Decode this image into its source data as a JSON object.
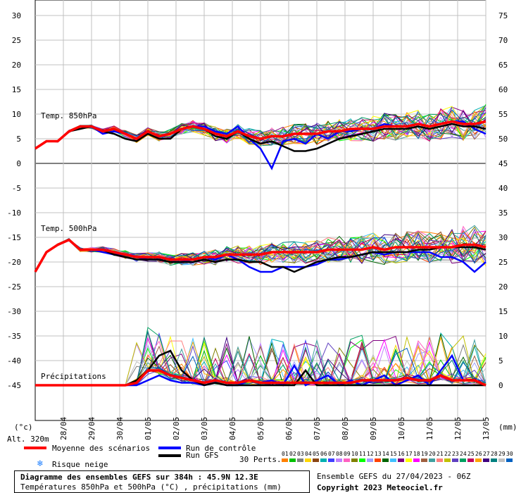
{
  "chart_data": {
    "type": "line",
    "title": "Diagramme des ensembles GEFS sur 384h : 45.9N 12.3E",
    "subtitle": "Températures 850hPa et 500hPa (°C) , précipitations (mm)",
    "x_tick_labels": [
      "28/04",
      "29/04",
      "30/04",
      "01/05",
      "02/05",
      "03/05",
      "04/05",
      "05/05",
      "06/05",
      "07/05",
      "08/05",
      "09/05",
      "10/05",
      "11/05",
      "12/05",
      "13/05"
    ],
    "left_axis_ticks": [
      "30",
      "25",
      "20",
      "15",
      "10",
      "5",
      "0",
      "-5",
      "-10",
      "-15",
      "-20",
      "-25",
      "-30",
      "-35",
      "-40",
      "-45"
    ],
    "right_axis_ticks": [
      "75",
      "70",
      "65",
      "60",
      "55",
      "50",
      "45",
      "40",
      "35",
      "30",
      "25",
      "20",
      "15",
      "10",
      "5",
      "0"
    ],
    "left_unit": "(°c)",
    "right_unit": "(mm)",
    "panel_labels": [
      "Temp. 850hPa",
      "Temp. 500hPa",
      "Précipitations"
    ],
    "altitude_label": "Alt. 320m",
    "series": [
      {
        "name": "Moyenne des scénarios",
        "color": "#ff0000",
        "t850": [
          3,
          4.5,
          4.5,
          6.5,
          7.5,
          7.5,
          6.5,
          7,
          6,
          5,
          6.5,
          5.5,
          6,
          7,
          7.5,
          7,
          6,
          5.5,
          6.5,
          5.5,
          5,
          5.5,
          5.5,
          6,
          6,
          6,
          6.5,
          6.5,
          7,
          7,
          7,
          7.5,
          7.5,
          7.5,
          8,
          7.5,
          8,
          8.5,
          8,
          8,
          8.5
        ],
        "t500": [
          -22,
          -18,
          -16.5,
          -15.5,
          -17.5,
          -17.5,
          -17.5,
          -18,
          -18.5,
          -19,
          -19,
          -19,
          -19.5,
          -19.5,
          -19.5,
          -19,
          -19,
          -18.5,
          -18.5,
          -18.5,
          -18.5,
          -18,
          -18,
          -18,
          -18,
          -18,
          -17.5,
          -17.5,
          -17.5,
          -17.5,
          -17,
          -17.5,
          -17,
          -17,
          -17,
          -17,
          -17,
          -17,
          -16.5,
          -16.5,
          -17
        ],
        "precip_mm": [
          0,
          0,
          0,
          0,
          0,
          0,
          0,
          0,
          0,
          0.5,
          3,
          3,
          2,
          1.5,
          1,
          0.5,
          1,
          0.5,
          0.5,
          1,
          0.5,
          0.5,
          0.5,
          0.5,
          0.5,
          0.5,
          0.5,
          0.5,
          0.5,
          1,
          1,
          1,
          1,
          1.5,
          1,
          1,
          2,
          1,
          1,
          1,
          0
        ]
      },
      {
        "name": "Run de contrôle",
        "color": "#0000ff",
        "t850": [
          3,
          4.5,
          4.5,
          6.5,
          7.5,
          7.5,
          6,
          6.5,
          6,
          5,
          6.5,
          5.5,
          6,
          7,
          7.5,
          7.5,
          6.5,
          6,
          7.5,
          5,
          3,
          -1,
          4.5,
          5,
          4,
          6,
          5,
          6.5,
          6.5,
          7,
          7,
          8,
          7.5,
          7.5,
          8,
          7.5,
          8,
          8.5,
          8.5,
          7,
          6
        ],
        "t500": [
          -22,
          -18,
          -16.5,
          -15.5,
          -17.5,
          -17.5,
          -18,
          -18.5,
          -18.5,
          -19,
          -19.5,
          -19.5,
          -20,
          -20,
          -19.5,
          -19,
          -19.5,
          -18.5,
          -19.5,
          -21,
          -22,
          -22,
          -21,
          -21,
          -21,
          -20.5,
          -19.5,
          -19.5,
          -19,
          -18.5,
          -18,
          -18.5,
          -18,
          -18,
          -18,
          -18,
          -19,
          -19,
          -20,
          -22,
          -20
        ],
        "precip_mm": [
          0,
          0,
          0,
          0,
          0,
          0,
          0,
          0,
          0,
          0,
          1,
          2,
          1,
          0.5,
          0.5,
          0,
          0.5,
          0,
          0,
          1,
          0.5,
          1,
          0,
          4,
          0,
          1,
          2,
          0,
          1,
          0,
          1,
          2,
          0,
          1,
          2,
          0,
          3,
          6,
          1,
          1,
          0
        ]
      },
      {
        "name": "Run GFS",
        "color": "#000000",
        "t850": [
          3,
          4.5,
          4.5,
          6.5,
          7,
          7.5,
          6.5,
          6,
          5,
          4.5,
          6,
          5,
          5,
          7,
          7.5,
          7,
          5.5,
          5,
          6.5,
          5,
          4,
          4.5,
          3.5,
          2.5,
          2.5,
          3,
          4,
          5,
          5.5,
          6,
          6.5,
          7,
          7,
          7,
          7.5,
          7,
          7.5,
          8,
          7.5,
          7.5,
          7
        ],
        "t500": [
          -22,
          -18,
          -16.5,
          -15.5,
          -17.5,
          -17.5,
          -17.5,
          -18.5,
          -19,
          -19.5,
          -19.5,
          -19.5,
          -20,
          -20,
          -20,
          -19.5,
          -20,
          -19.5,
          -19.5,
          -20,
          -20,
          -21,
          -21,
          -22,
          -21,
          -20,
          -19.5,
          -19,
          -19,
          -18.5,
          -18,
          -18,
          -18,
          -18,
          -17.5,
          -17.5,
          -17,
          -17,
          -17,
          -17,
          -17.5
        ],
        "precip_mm": [
          0,
          0,
          0,
          0,
          0,
          0,
          0,
          0,
          0,
          1,
          3,
          6,
          7,
          3,
          1,
          0,
          0.5,
          0,
          0,
          0,
          0,
          0,
          0,
          0,
          3,
          0,
          0,
          0,
          0,
          0,
          0,
          0,
          0,
          0,
          0,
          0,
          0,
          0,
          0,
          0,
          0
        ]
      }
    ],
    "ensemble_members": 30,
    "legend": {
      "mean_label": "Moyenne des scénarios",
      "control_label": "Run de contrôle",
      "gfs_label": "Run GFS",
      "snow_label": "Risque neige",
      "perts_label": "30 Perts."
    },
    "pert_numbers": [
      "01",
      "02",
      "03",
      "04",
      "05",
      "06",
      "07",
      "08",
      "09",
      "10",
      "11",
      "12",
      "13",
      "14",
      "15",
      "16",
      "17",
      "18",
      "19",
      "20",
      "21",
      "22",
      "23",
      "24",
      "25",
      "26",
      "27",
      "28",
      "29",
      "30"
    ],
    "pert_colors": [
      "#ff8000",
      "#00c000",
      "#808080",
      "#ffd700",
      "#8b4513",
      "#00b0b0",
      "#4040ff",
      "#c080ff",
      "#ff60c0",
      "#808000",
      "#00ff00",
      "#a0a0ff",
      "#ff4000",
      "#006400",
      "#40c0ff",
      "#800080",
      "#ffff00",
      "#ff00ff",
      "#a06040",
      "#40a0a0",
      "#ff8080",
      "#c0c000",
      "#6040c0",
      "#00a060",
      "#c00060",
      "#ffa500",
      "#400080",
      "#008080",
      "#c0c0c0",
      "#0060c0"
    ]
  },
  "footer": {
    "title": "Diagramme des ensembles GEFS sur 384h : 45.9N 12.3E",
    "subtitle": "Températures 850hPa et 500hPa (°C) , précipitations (mm)",
    "run_info": "Ensemble GEFS du 27/04/2023 - 06Z",
    "copyright": "Copyright 2023 Meteociel.fr"
  }
}
